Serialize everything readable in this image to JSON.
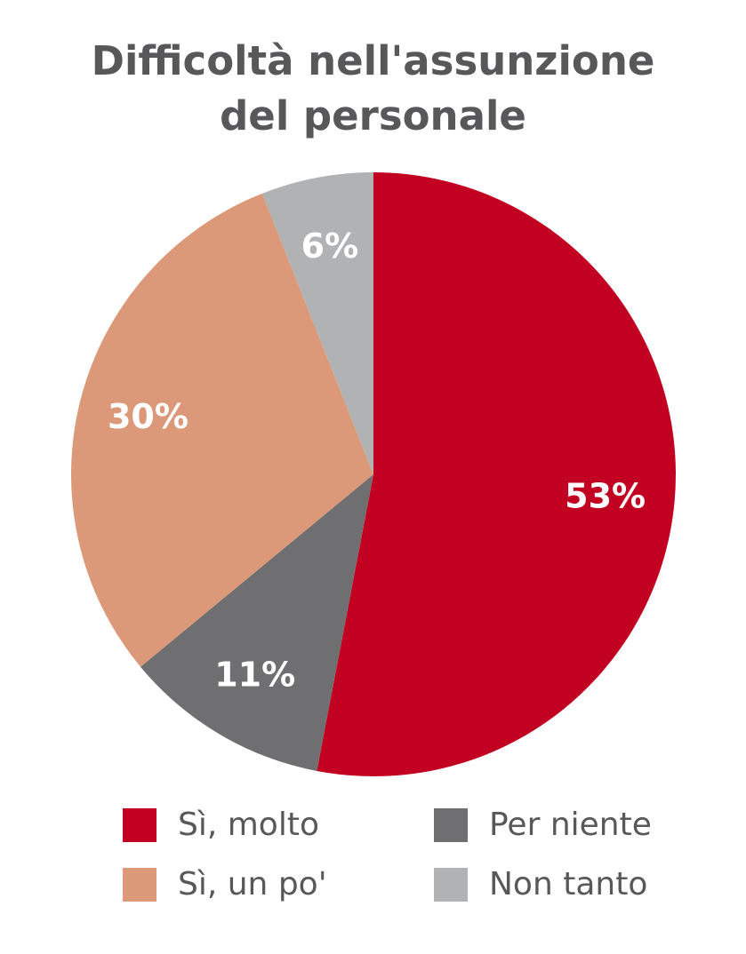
{
  "title_line1": "Difficoltà nell'assunzione",
  "title_line2": "del personale",
  "chart_data": {
    "type": "pie",
    "title": "Difficoltà nell'assunzione del personale",
    "start": "12 o'clock, clockwise",
    "slices": [
      {
        "label": "Sì, molto",
        "value": 53,
        "value_label": "53%",
        "color": "#c20022"
      },
      {
        "label": "Per niente",
        "value": 11,
        "value_label": "11%",
        "color": "#6f6f71"
      },
      {
        "label": "Sì, un po'",
        "value": 30,
        "value_label": "30%",
        "color": "#dc997a"
      },
      {
        "label": "Non tanto",
        "value": 6,
        "value_label": "6%",
        "color": "#b1b2b4"
      }
    ],
    "legend_position": "bottom"
  }
}
